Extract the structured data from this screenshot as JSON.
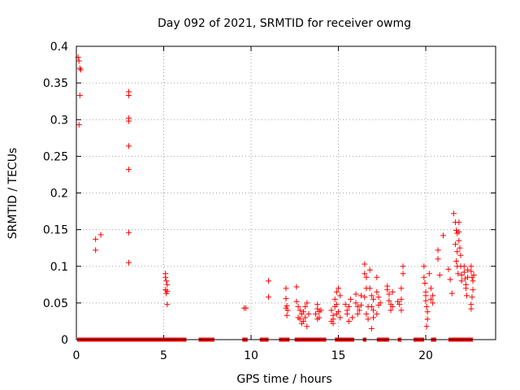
{
  "chart_data": {
    "type": "scatter",
    "title": "Day 092 of 2021, SRMTID for receiver owmg",
    "xlabel": "GPS time / hours",
    "ylabel": "SRMTID / TECUs",
    "xlim": [
      0,
      24
    ],
    "ylim": [
      0,
      0.4
    ],
    "xticks": [
      0,
      5,
      10,
      15,
      20
    ],
    "xtick_labels": [
      "0",
      "5",
      "10",
      "15",
      "20"
    ],
    "yticks": [
      0,
      0.05,
      0.1,
      0.15,
      0.2,
      0.25,
      0.3,
      0.35,
      0.4
    ],
    "ytick_labels": [
      "0",
      "0.05",
      "0.1",
      "0.15",
      "0.2",
      "0.25",
      "0.3",
      "0.35",
      "0.4"
    ],
    "grid": true,
    "marker": "+",
    "series": [
      {
        "name": "SRMTID",
        "color": "#ff0000",
        "points": [
          [
            0.1,
            0.385
          ],
          [
            0.15,
            0.38
          ],
          [
            0.2,
            0.37
          ],
          [
            0.25,
            0.368
          ],
          [
            0.2,
            0.333
          ],
          [
            0.15,
            0.293
          ],
          [
            1.1,
            0.137
          ],
          [
            1.1,
            0.122
          ],
          [
            1.4,
            0.143
          ],
          [
            3.0,
            0.338
          ],
          [
            3.0,
            0.333
          ],
          [
            3.0,
            0.302
          ],
          [
            3.0,
            0.298
          ],
          [
            3.0,
            0.264
          ],
          [
            3.0,
            0.232
          ],
          [
            3.0,
            0.146
          ],
          [
            3.0,
            0.105
          ],
          [
            5.1,
            0.09
          ],
          [
            5.1,
            0.085
          ],
          [
            5.15,
            0.08
          ],
          [
            5.2,
            0.075
          ],
          [
            5.1,
            0.068
          ],
          [
            5.2,
            0.066
          ],
          [
            5.15,
            0.063
          ],
          [
            5.2,
            0.048
          ],
          [
            9.6,
            0.043
          ],
          [
            9.7,
            0.043
          ],
          [
            11.0,
            0.08
          ],
          [
            11.0,
            0.058
          ],
          [
            12.0,
            0.07
          ],
          [
            12.0,
            0.056
          ],
          [
            12.05,
            0.046
          ],
          [
            12.0,
            0.043
          ],
          [
            12.1,
            0.04
          ],
          [
            12.05,
            0.033
          ],
          [
            12.6,
            0.072
          ],
          [
            12.6,
            0.052
          ],
          [
            12.7,
            0.045
          ],
          [
            12.8,
            0.04
          ],
          [
            12.9,
            0.035
          ],
          [
            12.7,
            0.03
          ],
          [
            12.8,
            0.028
          ],
          [
            13.0,
            0.025
          ],
          [
            12.9,
            0.022
          ],
          [
            13.1,
            0.03
          ],
          [
            13.0,
            0.038
          ],
          [
            13.1,
            0.045
          ],
          [
            13.2,
            0.05
          ],
          [
            13.3,
            0.035
          ],
          [
            13.2,
            0.018
          ],
          [
            13.8,
            0.048
          ],
          [
            13.8,
            0.042
          ],
          [
            13.9,
            0.038
          ],
          [
            13.7,
            0.035
          ],
          [
            13.9,
            0.03
          ],
          [
            14.0,
            0.04
          ],
          [
            13.8,
            0.028
          ],
          [
            14.6,
            0.04
          ],
          [
            14.7,
            0.028
          ],
          [
            14.6,
            0.025
          ],
          [
            14.7,
            0.033
          ],
          [
            14.8,
            0.045
          ],
          [
            14.8,
            0.055
          ],
          [
            14.9,
            0.048
          ],
          [
            14.9,
            0.065
          ],
          [
            15.0,
            0.07
          ],
          [
            15.0,
            0.038
          ],
          [
            14.9,
            0.035
          ],
          [
            14.7,
            0.022
          ],
          [
            15.1,
            0.06
          ],
          [
            15.1,
            0.03
          ],
          [
            15.4,
            0.048
          ],
          [
            15.5,
            0.04
          ],
          [
            15.5,
            0.035
          ],
          [
            15.6,
            0.045
          ],
          [
            15.6,
            0.025
          ],
          [
            15.7,
            0.055
          ],
          [
            15.8,
            0.03
          ],
          [
            16.0,
            0.05
          ],
          [
            16.0,
            0.062
          ],
          [
            16.1,
            0.045
          ],
          [
            16.2,
            0.04
          ],
          [
            16.1,
            0.035
          ],
          [
            16.3,
            0.047
          ],
          [
            16.3,
            0.06
          ],
          [
            16.5,
            0.103
          ],
          [
            16.5,
            0.09
          ],
          [
            16.6,
            0.085
          ],
          [
            16.6,
            0.07
          ],
          [
            16.5,
            0.058
          ],
          [
            16.7,
            0.045
          ],
          [
            16.6,
            0.035
          ],
          [
            16.7,
            0.028
          ],
          [
            16.8,
            0.095
          ],
          [
            16.8,
            0.07
          ],
          [
            16.9,
            0.06
          ],
          [
            16.9,
            0.045
          ],
          [
            17.0,
            0.04
          ],
          [
            17.0,
            0.055
          ],
          [
            17.0,
            0.03
          ],
          [
            16.9,
            0.015
          ],
          [
            17.2,
            0.085
          ],
          [
            17.2,
            0.065
          ],
          [
            17.3,
            0.058
          ],
          [
            17.3,
            0.047
          ],
          [
            17.4,
            0.05
          ],
          [
            17.2,
            0.035
          ],
          [
            17.8,
            0.073
          ],
          [
            17.8,
            0.068
          ],
          [
            17.9,
            0.062
          ],
          [
            17.9,
            0.053
          ],
          [
            18.0,
            0.048
          ],
          [
            18.0,
            0.04
          ],
          [
            18.1,
            0.045
          ],
          [
            18.1,
            0.065
          ],
          [
            18.4,
            0.052
          ],
          [
            18.5,
            0.048
          ],
          [
            18.6,
            0.07
          ],
          [
            18.6,
            0.055
          ],
          [
            18.7,
            0.09
          ],
          [
            18.7,
            0.1
          ],
          [
            18.6,
            0.04
          ],
          [
            19.9,
            0.1
          ],
          [
            19.9,
            0.085
          ],
          [
            19.95,
            0.077
          ],
          [
            20.0,
            0.065
          ],
          [
            20.0,
            0.06
          ],
          [
            20.0,
            0.053
          ],
          [
            20.05,
            0.045
          ],
          [
            20.1,
            0.038
          ],
          [
            20.1,
            0.028
          ],
          [
            20.05,
            0.018
          ],
          [
            20.2,
            0.09
          ],
          [
            20.3,
            0.07
          ],
          [
            20.3,
            0.055
          ],
          [
            20.4,
            0.05
          ],
          [
            20.4,
            0.06
          ],
          [
            20.7,
            0.122
          ],
          [
            20.7,
            0.11
          ],
          [
            20.8,
            0.088
          ],
          [
            21.0,
            0.142
          ],
          [
            21.3,
            0.096
          ],
          [
            21.4,
            0.082
          ],
          [
            21.5,
            0.063
          ],
          [
            21.6,
            0.172
          ],
          [
            21.7,
            0.16
          ],
          [
            21.75,
            0.149
          ],
          [
            21.8,
            0.145
          ],
          [
            21.7,
            0.13
          ],
          [
            21.8,
            0.12
          ],
          [
            21.75,
            0.107
          ],
          [
            21.8,
            0.1
          ],
          [
            21.85,
            0.09
          ],
          [
            21.9,
            0.16
          ],
          [
            21.9,
            0.147
          ],
          [
            21.9,
            0.135
          ],
          [
            21.95,
            0.125
          ],
          [
            22.0,
            0.115
          ],
          [
            22.0,
            0.1
          ],
          [
            22.05,
            0.088
          ],
          [
            22.05,
            0.08
          ],
          [
            22.2,
            0.1
          ],
          [
            22.2,
            0.092
          ],
          [
            22.25,
            0.083
          ],
          [
            22.3,
            0.075
          ],
          [
            22.3,
            0.07
          ],
          [
            22.35,
            0.06
          ],
          [
            22.4,
            0.095
          ],
          [
            22.4,
            0.085
          ],
          [
            22.6,
            0.1
          ],
          [
            22.6,
            0.093
          ],
          [
            22.65,
            0.085
          ],
          [
            22.7,
            0.08
          ],
          [
            22.7,
            0.068
          ],
          [
            22.65,
            0.058
          ],
          [
            22.6,
            0.048
          ],
          [
            22.6,
            0.042
          ],
          [
            22.75,
            0.088
          ]
        ],
        "zero_segments": [
          [
            0.05,
            6.3
          ],
          [
            7.0,
            7.9
          ],
          [
            9.5,
            9.8
          ],
          [
            10.5,
            11.0
          ],
          [
            11.6,
            12.2
          ],
          [
            12.5,
            14.3
          ],
          [
            14.8,
            15.9
          ],
          [
            16.4,
            16.6
          ],
          [
            17.2,
            17.9
          ],
          [
            18.4,
            18.6
          ],
          [
            19.3,
            19.9
          ],
          [
            20.3,
            20.6
          ],
          [
            21.3,
            22.7
          ]
        ]
      }
    ]
  }
}
